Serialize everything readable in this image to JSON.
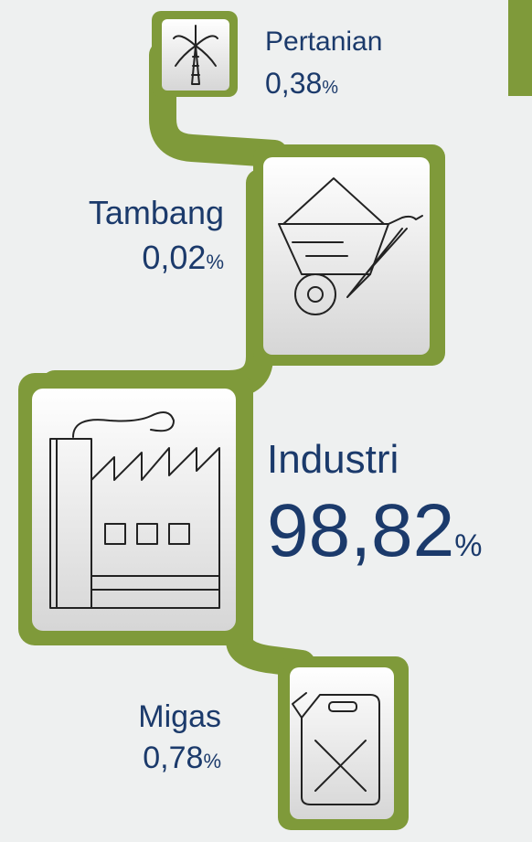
{
  "items": [
    {
      "label": "Pertanian",
      "value": "0,38",
      "unit": "%"
    },
    {
      "label": "Tambang",
      "value": "0,02",
      "unit": "%"
    },
    {
      "label": "Industri",
      "value": "98,82",
      "unit": "%"
    },
    {
      "label": "Migas",
      "value": "0,78",
      "unit": "%"
    }
  ]
}
